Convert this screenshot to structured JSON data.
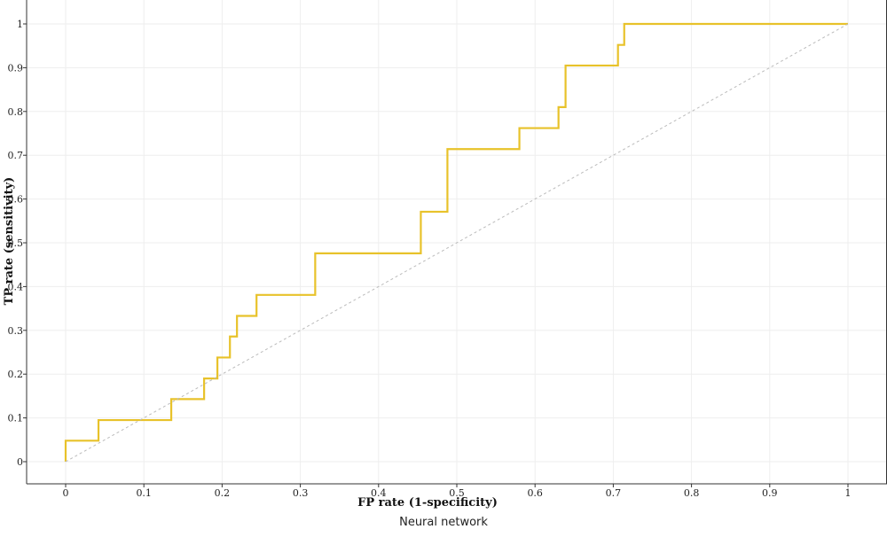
{
  "chart_data": {
    "type": "line",
    "xlabel": "FP rate (1-specificity)",
    "ylabel": "TP rate (sensitivity)",
    "xlim": [
      0,
      1
    ],
    "ylim": [
      0,
      1
    ],
    "x_ticks": [
      "0",
      "0.1",
      "0.2",
      "0.3",
      "0.4",
      "0.5",
      "0.6",
      "0.7",
      "0.8",
      "0.9",
      "1"
    ],
    "y_ticks": [
      "0",
      "0.1",
      "0.2",
      "0.3",
      "0.4",
      "0.5",
      "0.6",
      "0.7",
      "0.8",
      "0.9",
      "1"
    ],
    "grid": true,
    "series": [
      {
        "color": "#E8C22A",
        "step": true,
        "points": [
          [
            0,
            0
          ],
          [
            0,
            0.048
          ],
          [
            0.042,
            0.048
          ],
          [
            0.042,
            0.095
          ],
          [
            0.135,
            0.095
          ],
          [
            0.135,
            0.143
          ],
          [
            0.177,
            0.143
          ],
          [
            0.177,
            0.19
          ],
          [
            0.194,
            0.19
          ],
          [
            0.194,
            0.238
          ],
          [
            0.21,
            0.238
          ],
          [
            0.21,
            0.286
          ],
          [
            0.219,
            0.286
          ],
          [
            0.219,
            0.333
          ],
          [
            0.244,
            0.333
          ],
          [
            0.244,
            0.381
          ],
          [
            0.319,
            0.381
          ],
          [
            0.319,
            0.476
          ],
          [
            0.454,
            0.476
          ],
          [
            0.454,
            0.571
          ],
          [
            0.488,
            0.571
          ],
          [
            0.488,
            0.714
          ],
          [
            0.58,
            0.714
          ],
          [
            0.58,
            0.762
          ],
          [
            0.63,
            0.762
          ],
          [
            0.63,
            0.81
          ],
          [
            0.639,
            0.81
          ],
          [
            0.639,
            0.905
          ],
          [
            0.706,
            0.905
          ],
          [
            0.706,
            0.952
          ],
          [
            0.714,
            0.952
          ],
          [
            0.714,
            1.0
          ],
          [
            1.0,
            1.0
          ]
        ]
      },
      {
        "color": "#BBBBBB",
        "dashed": true,
        "points": [
          [
            0,
            0
          ],
          [
            1,
            1
          ]
        ]
      }
    ]
  },
  "caption": "Neural network"
}
